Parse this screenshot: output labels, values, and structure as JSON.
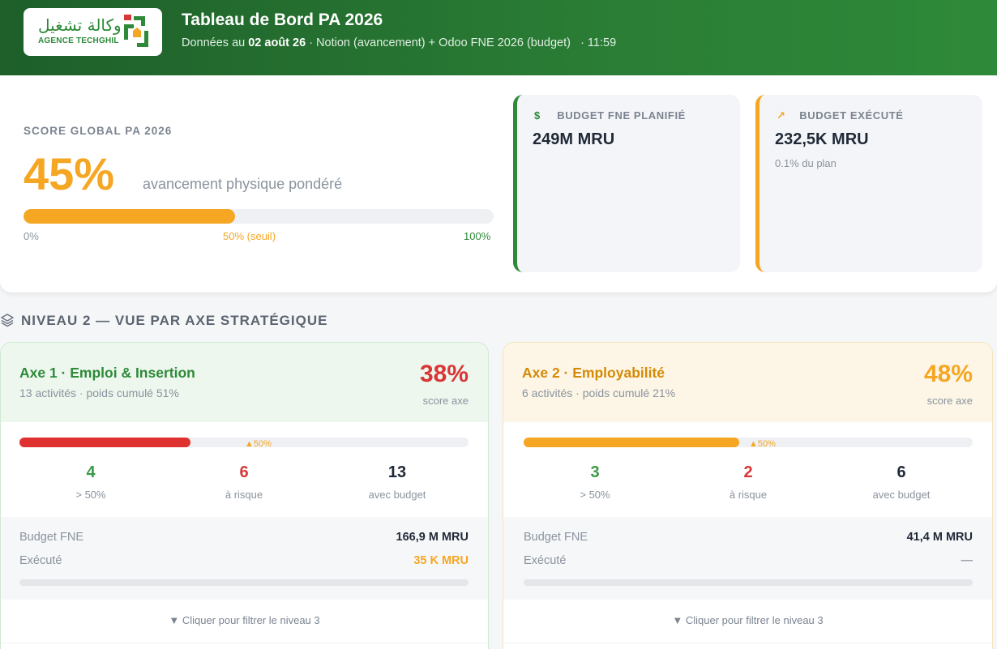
{
  "header": {
    "logo_ar": "وكالة تشغيل",
    "logo_en": "AGENCE TECHGHIL",
    "title": "Tableau de Bord PA 2026",
    "sub_prefix": "Données au",
    "sub_date": "02 août 26",
    "sub_sources": "· Notion (avancement) + Odoo FNE 2026 (budget)",
    "sub_time": "· 11:59"
  },
  "score": {
    "label": "SCORE GLOBAL PA 2026",
    "value": "45%",
    "progress": 0.45,
    "description": "avancement physique pondéré",
    "tick_0": "0%",
    "tick_50": "50% (seuil)",
    "tick_100": "100%"
  },
  "kpis": [
    {
      "icon": "dollar-icon",
      "icon_glyph": "$",
      "label": "BUDGET FNE PLANIFIÉ",
      "value": "249M MRU",
      "note": ""
    },
    {
      "icon": "trending-up-icon",
      "icon_glyph": "↗",
      "label": "BUDGET EXÉCUTÉ",
      "value": "232,5K MRU",
      "note": "0.1% du plan"
    }
  ],
  "section": {
    "title": "NIVEAU 2 — VUE PAR AXE STRATÉGIQUE"
  },
  "axes": [
    {
      "title": "Axe 1 · Emploi & Insertion",
      "subtitle": "13 activités · poids cumulé 51%",
      "score": "38%",
      "progress": 0.38,
      "score_label": "score axe",
      "threshold": "▲50%",
      "stats": [
        {
          "value": "4",
          "label": "> 50%"
        },
        {
          "value": "6",
          "label": "à risque"
        },
        {
          "value": "13",
          "label": "avec budget"
        }
      ],
      "budget_label": "Budget FNE",
      "budget_value": "166,9 M MRU",
      "executed_label": "Exécuté",
      "executed_value": "35 K MRU",
      "executed_progress": 0.0,
      "filter_hint": "▼ Cliquer pour filtrer le niveau 3"
    },
    {
      "title": "Axe 2 · Employabilité",
      "subtitle": "6 activités · poids cumulé 21%",
      "score": "48%",
      "progress": 0.48,
      "score_label": "score axe",
      "threshold": "▲50%",
      "stats": [
        {
          "value": "3",
          "label": "> 50%"
        },
        {
          "value": "2",
          "label": "à risque"
        },
        {
          "value": "6",
          "label": "avec budget"
        }
      ],
      "budget_label": "Budget FNE",
      "budget_value": "41,4 M MRU",
      "executed_label": "Exécuté",
      "executed_value": "—",
      "executed_progress": 0.0,
      "filter_hint": "▼ Cliquer pour filtrer le niveau 3"
    }
  ],
  "colors": {
    "brand_green": "#2e8a39",
    "accent_orange": "#f5a623",
    "risk_red": "#d93636"
  }
}
